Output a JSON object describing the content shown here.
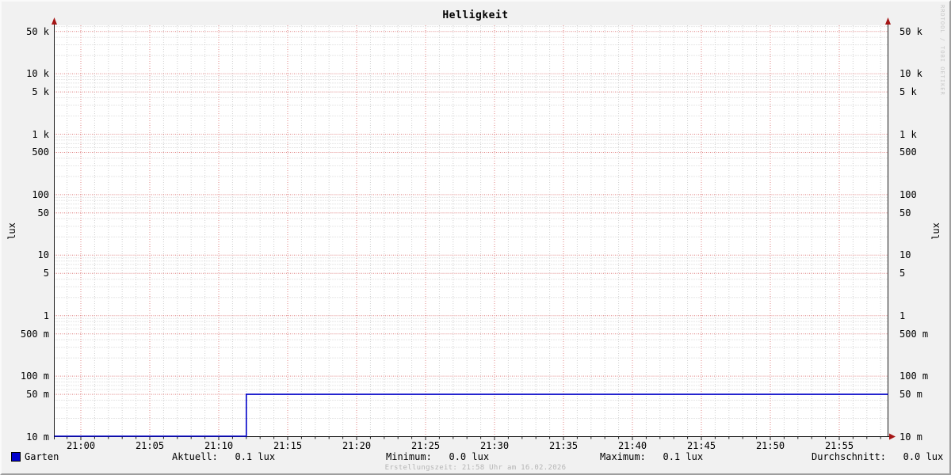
{
  "title": "Helligkeit",
  "axes": {
    "y_left_label": "lux",
    "y_right_label": "lux",
    "y_ticks": [
      {
        "label": "50 k",
        "value": 50000
      },
      {
        "label": "10 k",
        "value": 10000
      },
      {
        "label": "5 k",
        "value": 5000
      },
      {
        "label": "1 k",
        "value": 1000
      },
      {
        "label": "500",
        "value": 500
      },
      {
        "label": "100",
        "value": 100
      },
      {
        "label": "50",
        "value": 50
      },
      {
        "label": "10",
        "value": 10
      },
      {
        "label": "5",
        "value": 5
      },
      {
        "label": "1",
        "value": 1
      },
      {
        "label": "500 m",
        "value": 0.5
      },
      {
        "label": "100 m",
        "value": 0.1
      },
      {
        "label": "50 m",
        "value": 0.05
      },
      {
        "label": "10 m",
        "value": 0.01
      }
    ],
    "x_ticks": [
      {
        "label": "21:00",
        "minute": 0
      },
      {
        "label": "21:05",
        "minute": 5
      },
      {
        "label": "21:10",
        "minute": 10
      },
      {
        "label": "21:15",
        "minute": 15
      },
      {
        "label": "21:20",
        "minute": 20
      },
      {
        "label": "21:25",
        "minute": 25
      },
      {
        "label": "21:30",
        "minute": 30
      },
      {
        "label": "21:35",
        "minute": 35
      },
      {
        "label": "21:40",
        "minute": 40
      },
      {
        "label": "21:45",
        "minute": 45
      },
      {
        "label": "21:50",
        "minute": 50
      },
      {
        "label": "21:55",
        "minute": 55
      }
    ]
  },
  "legend": {
    "series_label": "Garten",
    "series_color": "#0000cc"
  },
  "stats": [
    {
      "label": "Aktuell:",
      "value": "0.1 lux"
    },
    {
      "label": "Minimum:",
      "value": "0.0 lux"
    },
    {
      "label": "Maximum:",
      "value": "0.1 lux"
    },
    {
      "label": "Durchschnitt:",
      "value": "0.0 lux"
    }
  ],
  "footer": "Erstellungszeit: 21:58 Uhr am 16.02.2026",
  "watermark": "RRDTOOL / TOBI OETIKER",
  "colors": {
    "line": "#0000c8",
    "major_grid": "#e08484",
    "minor_grid": "#cfcfcf",
    "axis": "#1a1a1a",
    "arrow": "#a51515",
    "canvas": "#ffffff",
    "background": "#f1f1f1"
  },
  "chart_data": {
    "type": "line",
    "title": "Helligkeit",
    "ylabel": "lux",
    "yscale": "logarithmic",
    "ylim": [
      0.01,
      60000
    ],
    "xlim": [
      "20:58",
      "21:58"
    ],
    "x_major_tick_minutes": 5,
    "x_minor_tick_minutes": 1,
    "grid": "dotted, red majors at 1/5 per decade, gray log minors",
    "legend_position": "bottom",
    "series": [
      {
        "name": "Garten",
        "color": "#0000c8",
        "points": [
          [
            "20:58",
            0.01
          ],
          [
            "21:12",
            0.01
          ],
          [
            "21:12",
            0.05
          ],
          [
            "21:58",
            0.05
          ]
        ]
      }
    ],
    "stats": {
      "aktuell": "0.1 lux",
      "minimum": "0.0 lux",
      "maximum": "0.1 lux",
      "durchschnitt": "0.0 lux"
    }
  }
}
